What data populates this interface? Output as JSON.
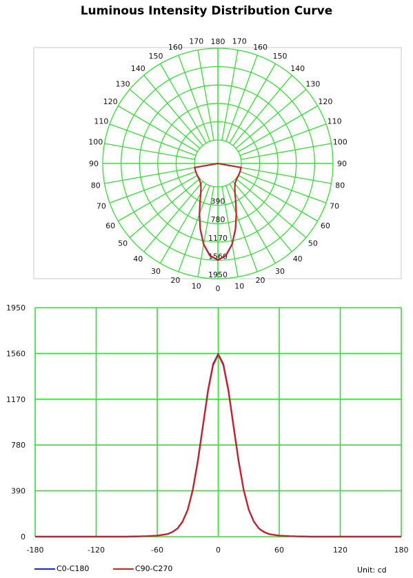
{
  "chart_data": [
    {
      "type": "polar",
      "title": "Luminous Intensity Distribution Curve",
      "angle_labels_left": [
        "0",
        "10",
        "20",
        "30",
        "40",
        "50",
        "60",
        "70",
        "80",
        "90",
        "100",
        "110",
        "120",
        "130",
        "140",
        "150",
        "160",
        "170",
        "180"
      ],
      "angle_labels_right": [
        "0",
        "10",
        "20",
        "30",
        "40",
        "50",
        "60",
        "70",
        "80",
        "90",
        "100",
        "110",
        "120",
        "130",
        "140",
        "150",
        "160",
        "170",
        "180"
      ],
      "radial_ticks": [
        1950,
        1560,
        1170,
        780,
        390
      ],
      "rlim": [
        0,
        1950
      ],
      "grid": true,
      "series": [
        {
          "name": "C0-C180",
          "color": "#2222cc",
          "angles": [
            0,
            5,
            10,
            15,
            20,
            25,
            30,
            35,
            40,
            45,
            50,
            60,
            70,
            80,
            90
          ],
          "values": [
            1555,
            1470,
            1250,
            950,
            650,
            400,
            230,
            130,
            70,
            40,
            22,
            8,
            4,
            2,
            0
          ]
        },
        {
          "name": "C90-C270",
          "color": "#cc2222",
          "angles": [
            0,
            5,
            10,
            15,
            20,
            25,
            30,
            35,
            40,
            45,
            50,
            60,
            70,
            80,
            90
          ],
          "values": [
            1550,
            1460,
            1240,
            940,
            640,
            395,
            228,
            128,
            68,
            39,
            21,
            8,
            4,
            2,
            0
          ]
        }
      ]
    },
    {
      "type": "line",
      "x_ticks": [
        -180,
        -120,
        -60,
        0,
        60,
        120,
        180
      ],
      "y_ticks": [
        0,
        390,
        780,
        1170,
        1560,
        1950
      ],
      "xlim": [
        -180,
        180
      ],
      "ylim": [
        0,
        1950
      ],
      "grid": true,
      "series": [
        {
          "name": "C0-C180",
          "color": "#2222cc",
          "x": [
            -180,
            -90,
            -70,
            -60,
            -50,
            -45,
            -40,
            -35,
            -30,
            -25,
            -20,
            -15,
            -10,
            -5,
            0,
            5,
            10,
            15,
            20,
            25,
            30,
            35,
            40,
            45,
            50,
            60,
            70,
            90,
            180
          ],
          "y": [
            0,
            0,
            4,
            8,
            22,
            40,
            70,
            130,
            230,
            400,
            650,
            950,
            1250,
            1470,
            1555,
            1470,
            1250,
            950,
            650,
            400,
            230,
            130,
            70,
            40,
            22,
            8,
            4,
            0,
            0
          ]
        },
        {
          "name": "C90-C270",
          "color": "#cc2222",
          "x": [
            -180,
            -90,
            -70,
            -60,
            -50,
            -45,
            -40,
            -35,
            -30,
            -25,
            -20,
            -15,
            -10,
            -5,
            0,
            5,
            10,
            15,
            20,
            25,
            30,
            35,
            40,
            45,
            50,
            60,
            70,
            90,
            180
          ],
          "y": [
            0,
            0,
            4,
            8,
            21,
            39,
            68,
            128,
            228,
            395,
            640,
            940,
            1240,
            1460,
            1550,
            1460,
            1240,
            940,
            640,
            395,
            228,
            128,
            68,
            39,
            21,
            8,
            4,
            0,
            0
          ]
        }
      ]
    }
  ],
  "legend": [
    {
      "label": "C0-C180",
      "color": "#2222cc"
    },
    {
      "label": "C90-C270",
      "color": "#cc2222"
    }
  ],
  "unit_label": "Unit: cd"
}
